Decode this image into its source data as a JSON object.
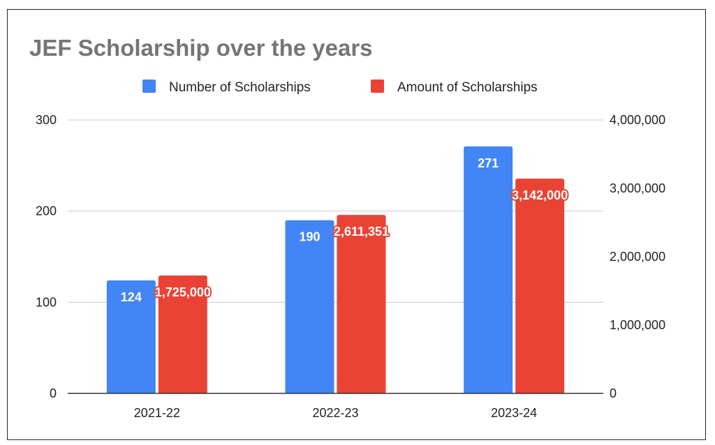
{
  "chart_data": {
    "type": "bar",
    "title": "JEF Scholarship over the years",
    "categories": [
      "2021-22",
      "2022-23",
      "2023-24"
    ],
    "series": [
      {
        "name": "Number of Scholarships",
        "axis": "left",
        "color": "#4285f4",
        "values": [
          124,
          190,
          271
        ],
        "labels": [
          "124",
          "190",
          "271"
        ]
      },
      {
        "name": "Amount of Scholarships",
        "axis": "right",
        "color": "#ea4335",
        "values": [
          1725000,
          2611351,
          3142000
        ],
        "labels": [
          "1,725,000",
          "2,611,351",
          "3,142,000"
        ]
      }
    ],
    "y_left": {
      "min": 0,
      "max": 300,
      "ticks": [
        0,
        100,
        200,
        300
      ],
      "tick_labels": [
        "0",
        "100",
        "200",
        "300"
      ]
    },
    "y_right": {
      "min": 0,
      "max": 4000000,
      "ticks": [
        0,
        1000000,
        2000000,
        3000000,
        4000000
      ],
      "tick_labels": [
        "0",
        "1,000,000",
        "2,000,000",
        "3,000,000",
        "4,000,000"
      ]
    },
    "legend_position": "top",
    "grid": true,
    "xlabel": "",
    "ylabel": ""
  }
}
